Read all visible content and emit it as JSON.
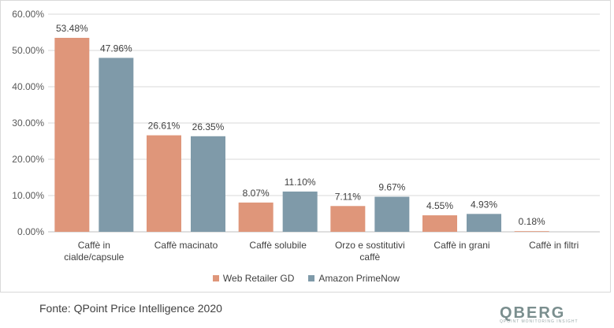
{
  "chart_data": {
    "type": "bar",
    "title": "",
    "xlabel": "",
    "ylabel": "",
    "ylim": [
      0,
      60
    ],
    "yticks": [
      "0.00%",
      "10.00%",
      "20.00%",
      "30.00%",
      "40.00%",
      "50.00%",
      "60.00%"
    ],
    "grid": true,
    "legend_position": "bottom",
    "categories": [
      "Caffè in cialde/capsule",
      "Caffè macinato",
      "Caffè solubile",
      "Orzo e sostitutivi caffè",
      "Caffè in grani",
      "Caffè in filtri"
    ],
    "series": [
      {
        "name": "Web Retailer GD",
        "color": "#df967a",
        "values": [
          53.48,
          26.61,
          8.07,
          7.11,
          4.55,
          0.18
        ],
        "labels": [
          "53.48%",
          "26.61%",
          "8.07%",
          "7.11%",
          "4.55%",
          "0.18%"
        ]
      },
      {
        "name": "Amazon PrimeNow",
        "color": "#7f9aa9",
        "values": [
          47.96,
          26.35,
          11.1,
          9.67,
          4.93,
          null
        ],
        "labels": [
          "47.96%",
          "26.35%",
          "11.10%",
          "9.67%",
          "4.93%",
          ""
        ]
      }
    ]
  },
  "footer": {
    "source": "Fonte: QPoint Price Intelligence 2020",
    "logo_text": "QBERG",
    "logo_tagline": "QPOINT MONITORING INSIGHT"
  }
}
